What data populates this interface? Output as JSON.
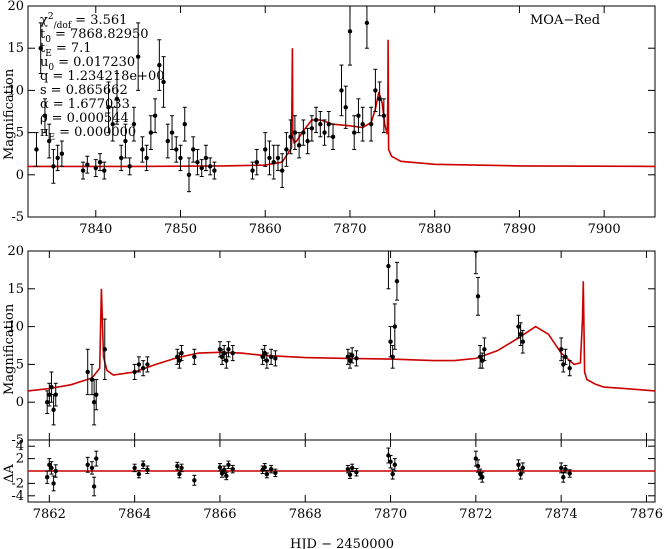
{
  "figure": {
    "xlabel": "HJD − 2450000",
    "data_color": "#000000",
    "model_color": "#cc0000"
  },
  "chart_data": [
    {
      "type": "scatter",
      "id": "top",
      "title": "MOA−Red",
      "ylabel": "Magnification",
      "xlim": [
        7832,
        7906
      ],
      "ylim": [
        -5,
        20
      ],
      "xticks": [
        7840,
        7850,
        7860,
        7870,
        7880,
        7890,
        7900
      ],
      "yticks": [
        -5,
        0,
        5,
        10,
        15,
        20
      ],
      "params": [
        {
          "sym": "χ",
          "sup": "2",
          "sub": "/dof",
          "eq": "= 3.561"
        },
        {
          "sym": "t",
          "sub": "0",
          "eq": "= 7868.82950"
        },
        {
          "sym": "t",
          "sub": "E",
          "eq": "= 7.1"
        },
        {
          "sym": "u",
          "sub": "0",
          "eq": "= 0.017230"
        },
        {
          "sym": "q",
          "eq": "= 1.234218e+00"
        },
        {
          "sym": "s",
          "eq": "= 0.865662"
        },
        {
          "sym": "α",
          "eq": "= 1.677033"
        },
        {
          "sym": "ρ",
          "eq": "= 0.000544"
        },
        {
          "sym": "π",
          "sub": "E",
          "eq": "= 0.000000"
        }
      ],
      "series": [
        {
          "name": "model",
          "kind": "line",
          "x": [
            7832,
            7845,
            7855,
            7860,
            7862,
            7863.1,
            7863.2,
            7863.25,
            7863.4,
            7863.7,
            7864.5,
            7865.5,
            7866.5,
            7868,
            7870,
            7871.5,
            7872.5,
            7873,
            7873.4,
            7873.8,
            7874.1,
            7874.4,
            7874.48,
            7874.5,
            7874.56,
            7874.9,
            7876,
            7880,
            7890,
            7906
          ],
          "y": [
            1.0,
            1.0,
            1.05,
            1.15,
            1.5,
            3.2,
            15.0,
            4.5,
            3.8,
            4.0,
            5.2,
            6.5,
            6.5,
            6.0,
            5.8,
            5.6,
            6.2,
            7.8,
            9.8,
            8.5,
            6.0,
            4.8,
            10.0,
            16.0,
            3.0,
            2.2,
            1.6,
            1.25,
            1.05,
            1.0
          ]
        },
        {
          "name": "MOA-Red",
          "kind": "points",
          "x": [
            7833,
            7833.5,
            7834,
            7834.5,
            7835,
            7835.5,
            7836,
            7838.5,
            7839,
            7840,
            7840.5,
            7841,
            7841.5,
            7842,
            7842.5,
            7843,
            7843.5,
            7844,
            7844.5,
            7845,
            7845.5,
            7846,
            7846.5,
            7847,
            7847.5,
            7848,
            7848.5,
            7849,
            7849.5,
            7850,
            7850.5,
            7851,
            7851.5,
            7852,
            7852.5,
            7853,
            7853.5,
            7854,
            7858.5,
            7859,
            7860,
            7860.5,
            7861,
            7861.5,
            7862,
            7862.5,
            7863,
            7863.5,
            7864,
            7864.5,
            7865,
            7865.5,
            7866,
            7866.5,
            7867,
            7867.5,
            7868,
            7869,
            7869.5,
            7870,
            7870.5,
            7871,
            7871.5,
            7872,
            7872.5,
            7873,
            7873.5,
            7874
          ],
          "y": [
            3,
            15,
            7,
            4,
            1,
            2,
            2.5,
            0.5,
            1.2,
            0.8,
            1.5,
            0.5,
            8,
            6,
            9,
            2,
            4,
            1,
            6,
            14,
            3,
            2,
            5,
            7,
            13,
            11,
            4,
            5,
            3,
            2,
            6,
            0,
            3,
            1.5,
            0.8,
            2,
            1,
            0.5,
            0.5,
            1.5,
            3,
            2,
            1.5,
            2,
            0.5,
            3,
            4.5,
            5,
            3.5,
            5,
            4,
            5.5,
            6.5,
            6,
            5,
            6,
            4.5,
            10,
            8,
            17,
            5,
            7,
            6,
            18,
            6,
            10,
            9,
            7
          ],
          "err": [
            2,
            3,
            2,
            2,
            2,
            1.5,
            1.5,
            1,
            1,
            1,
            1,
            1,
            3,
            2,
            3,
            1.5,
            2,
            1,
            2,
            4,
            1.5,
            1.5,
            2,
            2,
            3,
            3,
            2,
            2,
            1.5,
            1.5,
            2,
            2,
            1.5,
            1.5,
            1,
            1.5,
            1,
            1,
            1,
            1.5,
            2,
            2,
            2,
            1.5,
            2,
            2,
            2,
            2,
            1.5,
            1.5,
            1.5,
            1.5,
            1.5,
            1.5,
            1.5,
            1.5,
            1.5,
            3,
            2.5,
            4,
            2,
            2,
            2,
            3,
            2,
            2.5,
            2,
            2
          ]
        }
      ]
    },
    {
      "type": "scatter",
      "id": "middle",
      "ylabel": "Magnification",
      "xlim": [
        7861.5,
        7876.2
      ],
      "ylim": [
        -5,
        20
      ],
      "yticks": [
        -5,
        0,
        5,
        10,
        15,
        20
      ],
      "series": [
        {
          "name": "model",
          "kind": "line",
          "x": [
            7861.5,
            7862,
            7862.5,
            7863,
            7863.18,
            7863.22,
            7863.27,
            7863.35,
            7863.5,
            7864,
            7864.5,
            7865,
            7865.5,
            7866,
            7866.5,
            7867,
            7868,
            7869,
            7870,
            7871,
            7871.5,
            7872,
            7872.5,
            7873,
            7873.4,
            7873.7,
            7874,
            7874.3,
            7874.45,
            7874.5,
            7874.52,
            7874.55,
            7874.6,
            7874.8,
            7875,
            7875.5,
            7876.2
          ],
          "y": [
            1.5,
            1.8,
            2.3,
            3.2,
            4.5,
            15.0,
            6.0,
            4.2,
            3.6,
            4.0,
            5.0,
            5.9,
            6.5,
            6.6,
            6.5,
            6.2,
            5.9,
            5.8,
            5.7,
            5.5,
            5.5,
            5.8,
            6.8,
            8.5,
            10.0,
            9.0,
            6.5,
            5.0,
            5.2,
            11.0,
            16.0,
            4.0,
            3.0,
            2.4,
            2.0,
            1.8,
            1.5
          ]
        },
        {
          "name": "MOA-Red",
          "kind": "points",
          "x": [
            7861.95,
            7862.0,
            7862.05,
            7862.1,
            7862.15,
            7862.9,
            7863.0,
            7863.05,
            7863.1,
            7863.3,
            7864.0,
            7864.1,
            7864.2,
            7864.3,
            7865.0,
            7865.05,
            7865.1,
            7865.4,
            7866.0,
            7866.05,
            7866.1,
            7866.15,
            7866.2,
            7866.3,
            7867.0,
            7867.05,
            7867.1,
            7867.2,
            7867.3,
            7869.0,
            7869.05,
            7869.1,
            7869.2,
            7869.95,
            7870.0,
            7870.05,
            7870.1,
            7870.15,
            7872.0,
            7872.05,
            7872.1,
            7872.15,
            7872.2,
            7873.0,
            7873.05,
            7873.1,
            7874.0,
            7874.05,
            7874.1,
            7874.2
          ],
          "y": [
            0,
            1,
            2,
            -1,
            1,
            4,
            3,
            0,
            1,
            7,
            4,
            5,
            4.5,
            5,
            6,
            5.5,
            6.5,
            6,
            7,
            6,
            6.5,
            5.5,
            7,
            6.5,
            6,
            6.5,
            5.5,
            6,
            5.8,
            6,
            5.5,
            6.2,
            5.8,
            18,
            8,
            6,
            10,
            16,
            20,
            14,
            6,
            5.5,
            7,
            10,
            9,
            8,
            7,
            5,
            6,
            4.5
          ],
          "err": [
            1.5,
            1.5,
            2,
            2,
            1.5,
            3,
            2,
            3,
            2,
            4,
            1,
            1,
            1,
            1,
            1,
            1,
            1,
            1,
            1,
            1,
            1,
            1,
            1,
            1,
            1,
            1,
            1,
            1,
            1,
            1,
            1,
            1,
            1,
            3,
            2,
            1.5,
            3,
            2.5,
            3,
            2.5,
            1.5,
            1,
            1.5,
            1.5,
            1.5,
            1.5,
            1.5,
            1,
            1,
            1
          ]
        }
      ]
    },
    {
      "type": "scatter",
      "id": "bottom",
      "ylabel": "ΔA",
      "xlim": [
        7861.5,
        7876.2
      ],
      "ylim": [
        -5,
        5
      ],
      "xticks": [
        7862,
        7864,
        7866,
        7868,
        7870,
        7872,
        7874,
        7876
      ],
      "yticks": [
        -4,
        -2,
        2,
        4
      ],
      "series": [
        {
          "name": "zero",
          "kind": "line",
          "x": [
            7861.5,
            7876.2
          ],
          "y": [
            0,
            0
          ]
        },
        {
          "name": "residuals",
          "kind": "points",
          "x": [
            7861.95,
            7862.0,
            7862.05,
            7862.1,
            7862.15,
            7862.9,
            7863.0,
            7863.05,
            7863.1,
            7864.0,
            7864.1,
            7864.2,
            7864.3,
            7865.0,
            7865.05,
            7865.1,
            7865.4,
            7866.0,
            7866.05,
            7866.1,
            7866.15,
            7866.2,
            7866.3,
            7867.0,
            7867.05,
            7867.1,
            7867.2,
            7867.3,
            7869.0,
            7869.05,
            7869.1,
            7869.2,
            7869.95,
            7870.0,
            7870.05,
            7870.1,
            7872.0,
            7872.05,
            7872.1,
            7872.15,
            7873.0,
            7873.05,
            7873.1,
            7874.0,
            7874.05,
            7874.1,
            7874.2
          ],
          "y": [
            -1,
            1,
            0.5,
            -2,
            0,
            1,
            0.5,
            -2.5,
            2,
            0.5,
            -0.5,
            1,
            0.2,
            0.8,
            -0.5,
            0.5,
            -1.5,
            0.6,
            -0.4,
            0.2,
            -0.8,
            1,
            0.3,
            0.2,
            0.6,
            -0.5,
            0.3,
            -0.3,
            0.3,
            -0.6,
            0.5,
            -0.2,
            2.5,
            1.5,
            -0.5,
            1,
            2,
            0.8,
            -0.5,
            -1,
            1,
            -0.5,
            0.5,
            0.5,
            -1,
            0.3,
            -0.4
          ],
          "err": [
            1,
            1,
            1,
            1.2,
            1,
            1.2,
            1,
            1.5,
            1.2,
            0.6,
            0.6,
            0.6,
            0.6,
            0.6,
            0.6,
            0.6,
            0.8,
            0.6,
            0.6,
            0.6,
            0.6,
            0.6,
            0.6,
            0.6,
            0.6,
            0.6,
            0.6,
            0.6,
            0.6,
            0.6,
            0.6,
            0.6,
            1.2,
            1.0,
            0.8,
            1.0,
            1.2,
            1.0,
            0.8,
            0.8,
            0.8,
            0.8,
            0.8,
            0.8,
            0.8,
            0.6,
            0.6
          ]
        }
      ]
    }
  ]
}
